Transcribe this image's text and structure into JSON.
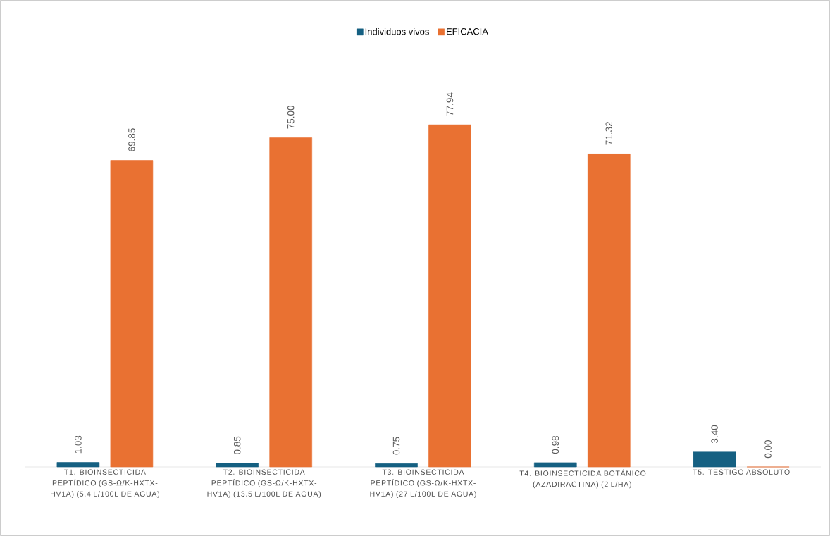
{
  "chart_data": {
    "type": "bar",
    "legend": "top",
    "categories": [
      "T1. BIOINSECTICIDA PEPTÍDICO (GS-Ω/K-HXTX-HV1A) (5.4 L/100L DE AGUA)",
      "T2. BIOINSECTICIDA PEPTÍDICO (GS-Ω/K-HXTX-HV1A) (13.5 L/100L DE AGUA)",
      "T3. BIOINSECTICIDA PEPTÍDICO (GS-Ω/K-HXTX-HV1A) (27 L/100L DE AGUA)",
      "T4. BIOINSECTICIDA BOTÁNICO (AZADIRACTINA) (2 L/HA)",
      "T5. TESTIGO ABSOLUTO"
    ],
    "series": [
      {
        "name": "Individuos vivos",
        "color": "#156082",
        "values": [
          1.03,
          0.85,
          0.75,
          0.98,
          3.4
        ],
        "value_labels": [
          "1.03",
          "0.85",
          "0.75",
          "0.98",
          "3.40"
        ]
      },
      {
        "name": "EFICACIA",
        "color": "#e97132",
        "values": [
          69.85,
          75.0,
          77.94,
          71.32,
          0.0
        ],
        "value_labels": [
          "69.85",
          "75.00",
          "77.94",
          "71.32",
          "0.00"
        ]
      }
    ]
  }
}
